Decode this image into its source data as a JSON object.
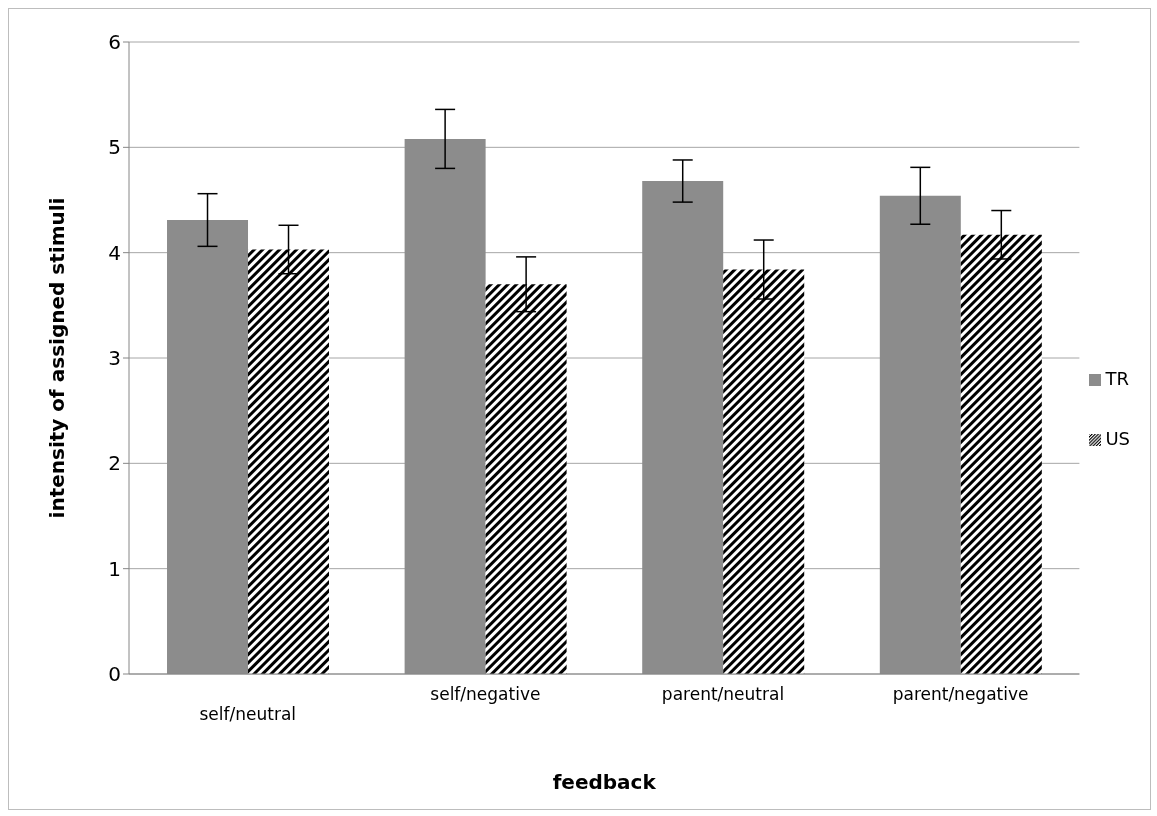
{
  "chart_data": {
    "type": "bar",
    "xlabel": "feedback",
    "ylabel": "intensity of assigned stimuli",
    "categories": [
      "self/neutral",
      "self/negative",
      "parent/neutral",
      "parent/negative"
    ],
    "series": [
      {
        "name": "TR",
        "color": "#8c8c8c",
        "values": [
          4.31,
          5.08,
          4.68,
          4.54
        ],
        "errors": [
          0.25,
          0.28,
          0.2,
          0.27
        ]
      },
      {
        "name": "US",
        "color": "#000000",
        "values": [
          4.03,
          3.7,
          3.84,
          4.17
        ],
        "errors": [
          0.23,
          0.26,
          0.28,
          0.23
        ]
      }
    ],
    "ylim": [
      0,
      6
    ],
    "yticks": [
      0,
      1,
      2,
      3,
      4,
      5,
      6
    ],
    "grid": "y",
    "legend": "right"
  }
}
